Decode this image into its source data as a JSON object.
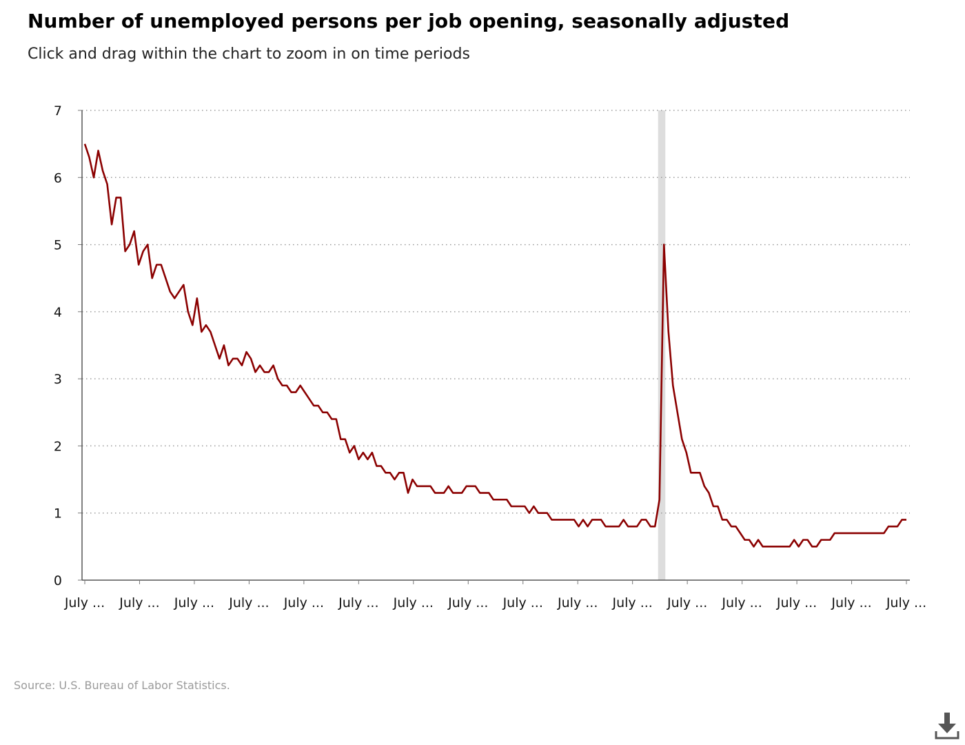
{
  "header": {
    "title": "Number of unemployed persons per job opening, seasonally adjusted",
    "subtitle": "Click and drag within the chart to zoom in on time periods"
  },
  "footer": {
    "source": "Source: U.S. Bureau of Labor Statistics."
  },
  "toolbar": {
    "download_icon": "download-icon"
  },
  "chart_data": {
    "type": "line",
    "title": "Number of unemployed persons per job opening, seasonally adjusted",
    "xlabel": "",
    "ylabel": "",
    "ylim": [
      0,
      7
    ],
    "yticks": [
      0,
      1,
      2,
      3,
      4,
      5,
      6,
      7
    ],
    "xtick_labels": [
      "July ...",
      "July ...",
      "July ...",
      "July ...",
      "July ...",
      "July ...",
      "July ...",
      "July ...",
      "July ...",
      "July ...",
      "July ...",
      "July ...",
      "July ...",
      "July ...",
      "July ...",
      "July ..."
    ],
    "grid": true,
    "line_color": "#8b0000",
    "recession_shading": {
      "start_index": 128,
      "end_index": 129,
      "color": "#dddddd"
    },
    "series": [
      {
        "values": [
          6.5,
          6.3,
          6.0,
          6.4,
          6.1,
          5.9,
          5.3,
          5.7,
          5.7,
          4.9,
          5.0,
          5.2,
          4.7,
          4.9,
          5.0,
          4.5,
          4.7,
          4.7,
          4.5,
          4.3,
          4.2,
          4.3,
          4.4,
          4.0,
          3.8,
          4.2,
          3.7,
          3.8,
          3.7,
          3.5,
          3.3,
          3.5,
          3.2,
          3.3,
          3.3,
          3.2,
          3.4,
          3.3,
          3.1,
          3.2,
          3.1,
          3.1,
          3.2,
          3.0,
          2.9,
          2.9,
          2.8,
          2.8,
          2.9,
          2.8,
          2.7,
          2.6,
          2.6,
          2.5,
          2.5,
          2.4,
          2.4,
          2.1,
          2.1,
          1.9,
          2.0,
          1.8,
          1.9,
          1.8,
          1.9,
          1.7,
          1.7,
          1.6,
          1.6,
          1.5,
          1.6,
          1.6,
          1.3,
          1.5,
          1.4,
          1.4,
          1.4,
          1.4,
          1.3,
          1.3,
          1.3,
          1.4,
          1.3,
          1.3,
          1.3,
          1.4,
          1.4,
          1.4,
          1.3,
          1.3,
          1.3,
          1.2,
          1.2,
          1.2,
          1.2,
          1.1,
          1.1,
          1.1,
          1.1,
          1.0,
          1.1,
          1.0,
          1.0,
          1.0,
          0.9,
          0.9,
          0.9,
          0.9,
          0.9,
          0.9,
          0.8,
          0.9,
          0.8,
          0.9,
          0.9,
          0.9,
          0.8,
          0.8,
          0.8,
          0.8,
          0.9,
          0.8,
          0.8,
          0.8,
          0.9,
          0.9,
          0.8,
          0.8,
          1.2,
          5.0,
          3.7,
          2.9,
          2.5,
          2.1,
          1.9,
          1.6,
          1.6,
          1.6,
          1.4,
          1.3,
          1.1,
          1.1,
          0.9,
          0.9,
          0.8,
          0.8,
          0.7,
          0.6,
          0.6,
          0.5,
          0.6,
          0.5,
          0.5,
          0.5,
          0.5,
          0.5,
          0.5,
          0.5,
          0.6,
          0.5,
          0.6,
          0.6,
          0.5,
          0.5,
          0.6,
          0.6,
          0.6,
          0.7,
          0.7,
          0.7,
          0.7,
          0.7,
          0.7,
          0.7,
          0.7,
          0.7,
          0.7,
          0.7,
          0.7,
          0.8,
          0.8,
          0.8,
          0.9,
          0.9
        ]
      }
    ]
  }
}
